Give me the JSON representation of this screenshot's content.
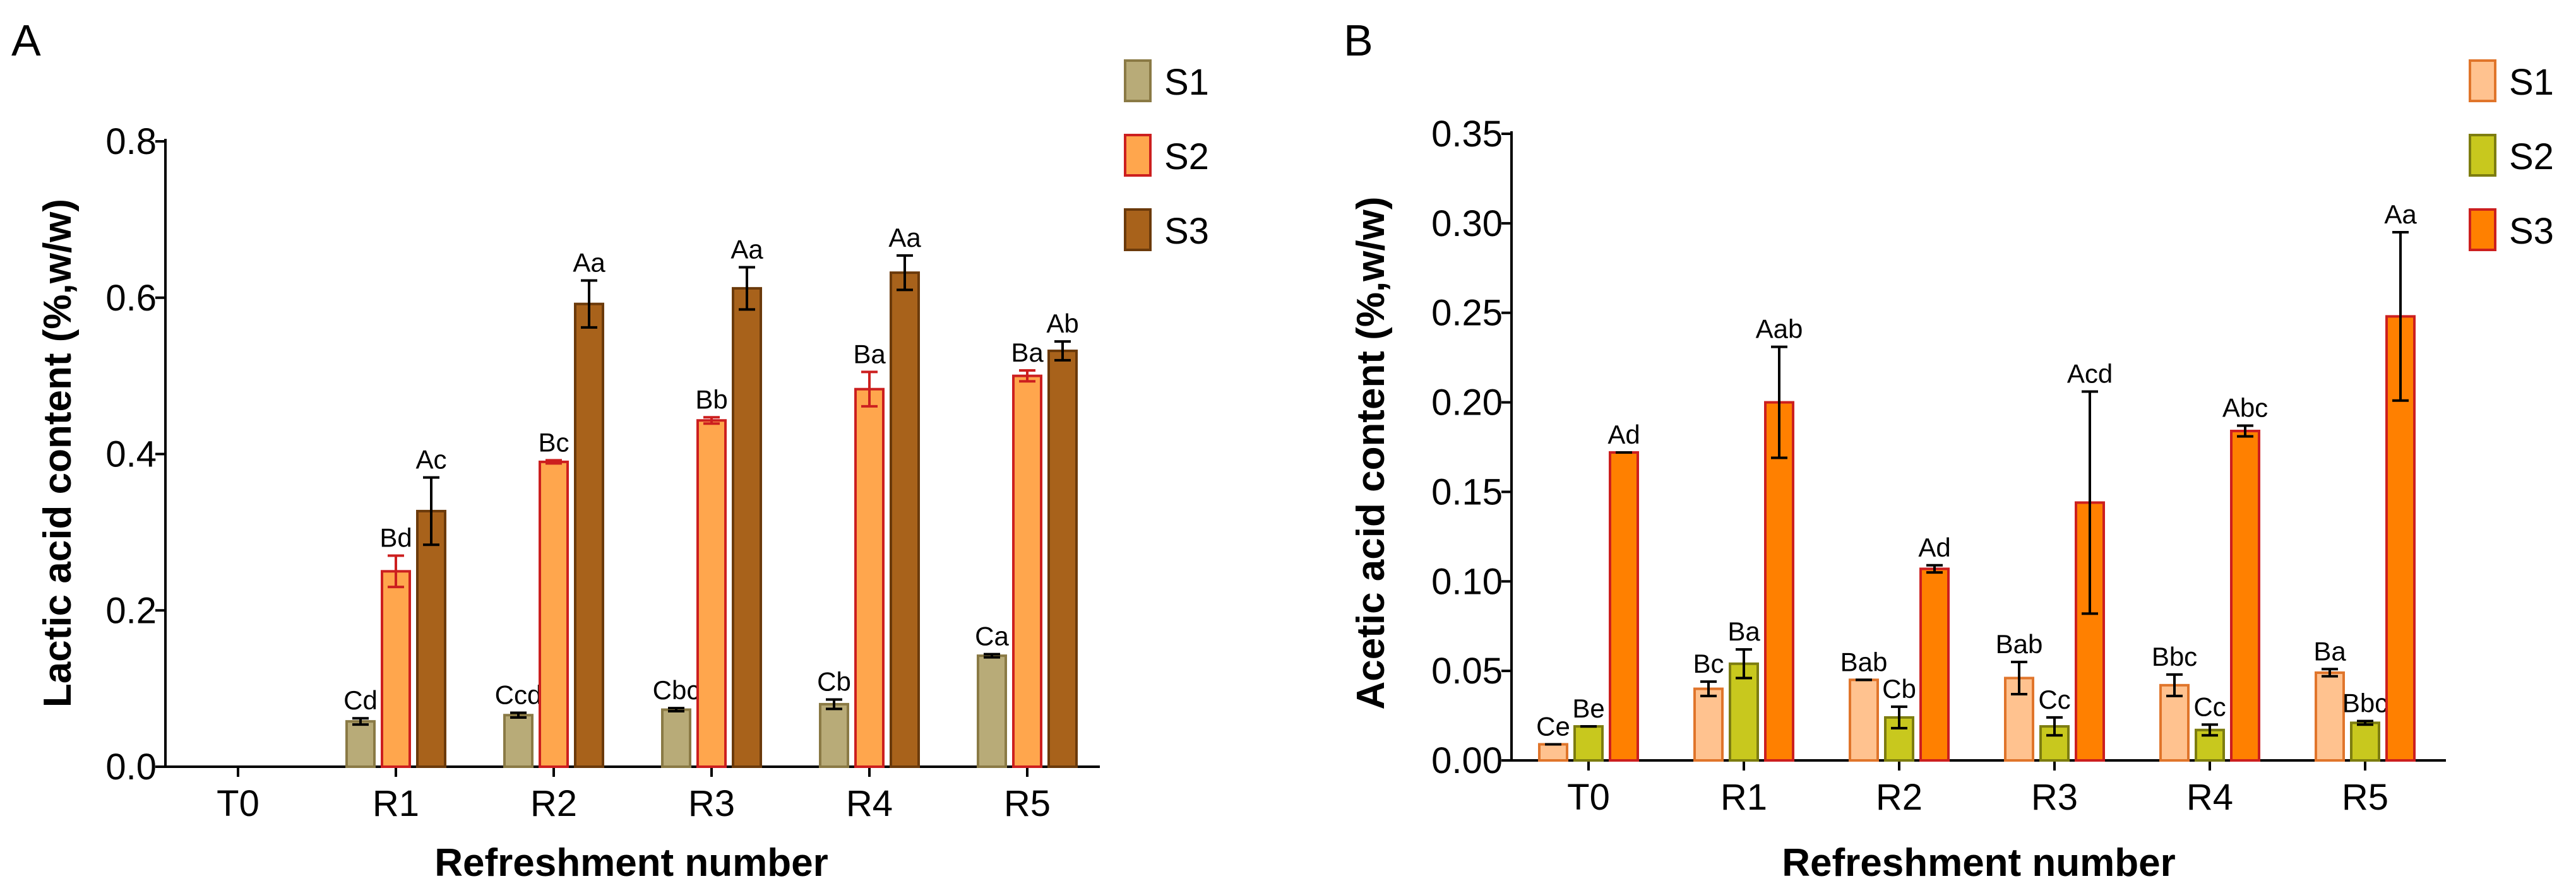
{
  "chart_data": [
    {
      "panel": "A",
      "type": "bar",
      "title": "",
      "xlabel": "Refreshment number",
      "ylabel": "Lactic acid content (%,w/w)",
      "ylim": [
        0,
        0.8
      ],
      "yticks": [
        0.0,
        0.2,
        0.4,
        0.6,
        0.8
      ],
      "ytick_labels": [
        "0.0",
        "0.2",
        "0.4",
        "0.6",
        "0.8"
      ],
      "categories": [
        "T0",
        "R1",
        "R2",
        "R3",
        "R4",
        "R5"
      ],
      "legend_position": "top-right",
      "grid": false,
      "series": [
        {
          "name": "S1",
          "fill": "#b8ab78",
          "stroke": "#8a7a45",
          "errcolor": "#000000",
          "values": [
            0,
            0.058,
            0.066,
            0.073,
            0.08,
            0.142
          ],
          "errors": [
            0,
            0.004,
            0.003,
            0.002,
            0.006,
            0.002
          ],
          "labels": [
            "",
            "Cd",
            "Ccd",
            "Cbc",
            "Cb",
            "Ca"
          ]
        },
        {
          "name": "S2",
          "fill": "#ffa64d",
          "stroke": "#cc1f1f",
          "errcolor": "#cc1f1f",
          "values": [
            0,
            0.25,
            0.39,
            0.443,
            0.483,
            0.5
          ],
          "errors": [
            0,
            0.02,
            0.002,
            0.004,
            0.022,
            0.007
          ],
          "labels": [
            "",
            "Bd",
            "Bc",
            "Bb",
            "Ba",
            "Ba"
          ]
        },
        {
          "name": "S3",
          "fill": "#a8621b",
          "stroke": "#6b3a0b",
          "errcolor": "#000000",
          "values": [
            0,
            0.327,
            0.592,
            0.612,
            0.632,
            0.532
          ],
          "errors": [
            0,
            0.043,
            0.03,
            0.027,
            0.022,
            0.012
          ],
          "labels": [
            "",
            "Ac",
            "Aa",
            "Aa",
            "Aa",
            "Ab"
          ]
        }
      ]
    },
    {
      "panel": "B",
      "type": "bar",
      "title": "",
      "xlabel": "Refreshment number",
      "ylabel": "Acetic acid content (%,w/w)",
      "ylim": [
        0,
        0.35
      ],
      "yticks": [
        0.0,
        0.05,
        0.1,
        0.15,
        0.2,
        0.25,
        0.3,
        0.35
      ],
      "ytick_labels": [
        "0.00",
        "0.05",
        "0.10",
        "0.15",
        "0.20",
        "0.25",
        "0.30",
        "0.35"
      ],
      "categories": [
        "T0",
        "R1",
        "R2",
        "R3",
        "R4",
        "R5"
      ],
      "legend_position": "top-right",
      "grid": false,
      "series": [
        {
          "name": "S1",
          "fill": "#ffc28f",
          "stroke": "#e0752b",
          "errcolor": "#000000",
          "values": [
            0.009,
            0.04,
            0.045,
            0.046,
            0.042,
            0.049
          ],
          "errors": [
            0,
            0.004,
            0,
            0.009,
            0.006,
            0.002
          ],
          "labels": [
            "Ce",
            "Bc",
            "Bab",
            "Bab",
            "Bbc",
            "Ba"
          ]
        },
        {
          "name": "S2",
          "fill": "#c8c81e",
          "stroke": "#7d7d10",
          "errcolor": "#000000",
          "values": [
            0.019,
            0.054,
            0.024,
            0.019,
            0.017,
            0.021
          ],
          "errors": [
            0,
            0.008,
            0.006,
            0.005,
            0.003,
            0.001
          ],
          "labels": [
            "Be",
            "Ba",
            "Cb",
            "Cc",
            "Cc",
            "Bbc"
          ]
        },
        {
          "name": "S3",
          "fill": "#ff8000",
          "stroke": "#cc1f1f",
          "errcolor": "#000000",
          "values": [
            0.172,
            0.2,
            0.107,
            0.144,
            0.184,
            0.248
          ],
          "errors": [
            0,
            0.031,
            0.002,
            0.062,
            0.003,
            0.047
          ],
          "labels": [
            "Ad",
            "Aab",
            "Ad",
            "Acd",
            "Abc",
            "Aa"
          ]
        }
      ]
    }
  ]
}
